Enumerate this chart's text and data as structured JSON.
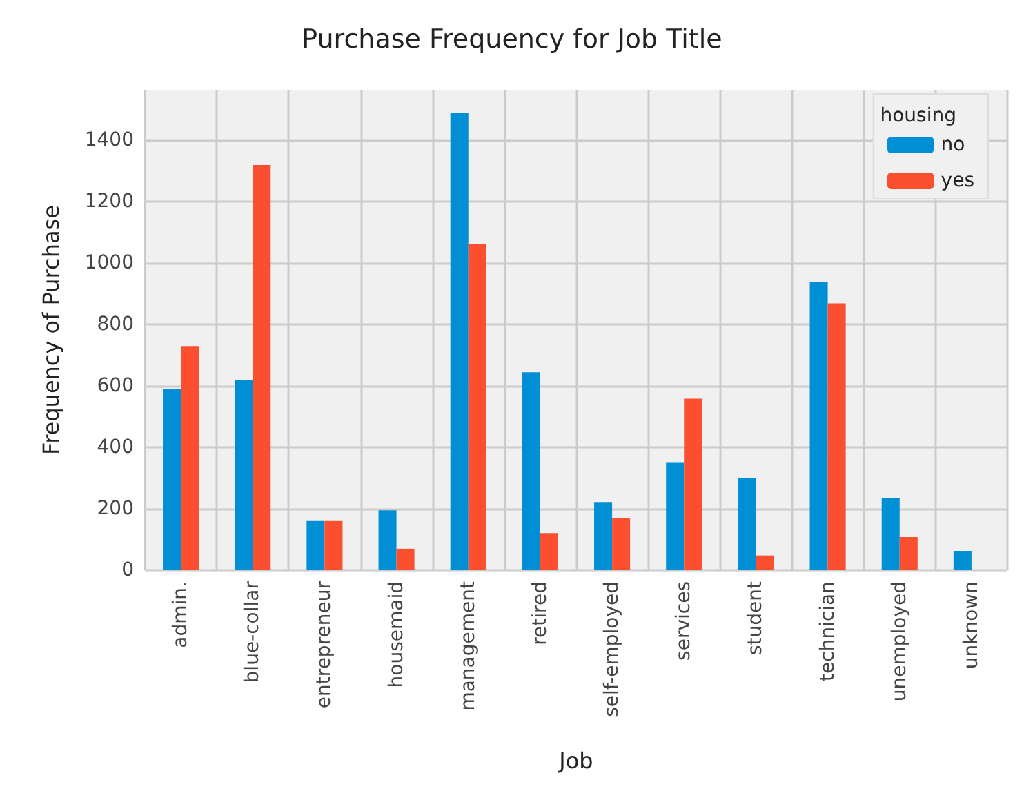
{
  "chart_data": {
    "type": "bar",
    "title": "Purchase Frequency for Job Title",
    "xlabel": "Job",
    "ylabel": "Frequency of Purchase",
    "legend_title": "housing",
    "categories": [
      "admin.",
      "blue-collar",
      "entrepreneur",
      "housemaid",
      "management",
      "retired",
      "self-employed",
      "services",
      "student",
      "technician",
      "unemployed",
      "unknown"
    ],
    "series": [
      {
        "name": "no",
        "color": "#008fd5",
        "values": [
          590,
          620,
          160,
          195,
          1490,
          645,
          222,
          352,
          301,
          940,
          236,
          63
        ]
      },
      {
        "name": "yes",
        "color": "#fc4f30",
        "values": [
          730,
          1320,
          160,
          70,
          1063,
          121,
          170,
          559,
          48,
          869,
          108,
          null
        ]
      }
    ],
    "ylim": [
      0,
      1565
    ],
    "yticks": [
      0,
      200,
      400,
      600,
      800,
      1000,
      1200,
      1400
    ],
    "grid": true,
    "legend": "top right"
  }
}
